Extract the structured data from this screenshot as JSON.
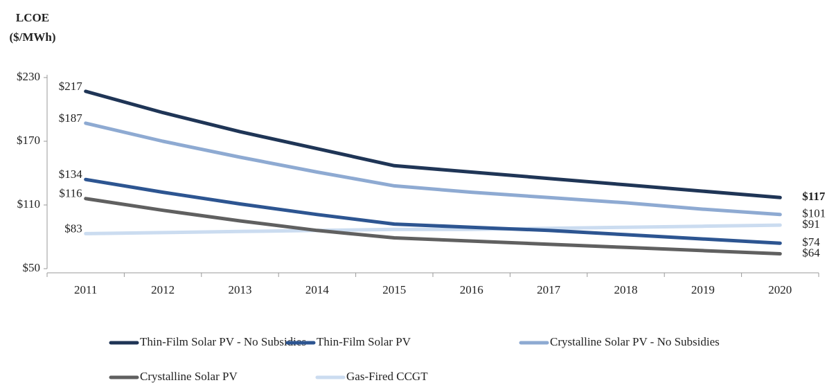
{
  "chart_data": {
    "type": "line",
    "y_label": "LCOE ($/MWh)",
    "categories": [
      "2011",
      "2012",
      "2013",
      "2014",
      "2015",
      "2016",
      "2017",
      "2018",
      "2019",
      "2020"
    ],
    "ylim": [
      50,
      230
    ],
    "yticks": [
      {
        "value": 50,
        "label": "$50"
      },
      {
        "value": 110,
        "label": "$110"
      },
      {
        "value": 170,
        "label": "$170"
      },
      {
        "value": 230,
        "label": "$230"
      }
    ],
    "series": [
      {
        "name": "Thin-Film Solar PV - No Subsidies",
        "color": "#1f3556",
        "values": [
          217,
          197,
          179,
          163,
          147,
          141,
          135,
          129,
          123,
          117
        ],
        "value_labels": [
          "$217",
          null,
          null,
          null,
          null,
          null,
          null,
          null,
          null,
          "$117"
        ]
      },
      {
        "name": "Thin-Film Solar PV",
        "color": "#2d5591",
        "values": [
          134,
          122,
          111,
          101,
          92,
          89,
          86,
          82,
          78,
          74
        ],
        "value_labels": [
          "$134",
          null,
          null,
          null,
          null,
          null,
          null,
          null,
          null,
          "$74"
        ]
      },
      {
        "name": "Crystalline Solar PV - No Subsidies",
        "color": "#8eaad2",
        "values": [
          187,
          170,
          155,
          141,
          128,
          122,
          117,
          112,
          106,
          101
        ],
        "value_labels": [
          "$187",
          null,
          null,
          null,
          null,
          null,
          null,
          null,
          null,
          "$101"
        ]
      },
      {
        "name": "Crystalline Solar PV",
        "color": "#606060",
        "values": [
          116,
          105,
          95,
          86,
          79,
          76,
          73,
          70,
          67,
          64
        ],
        "value_labels": [
          "$116",
          null,
          null,
          null,
          null,
          null,
          null,
          null,
          null,
          "$64"
        ]
      },
      {
        "name": "Gas-Fired CCGT",
        "color": "#cbdcf0",
        "values": [
          83,
          84,
          85,
          86,
          87,
          87,
          88,
          89,
          90,
          91
        ],
        "value_labels": [
          "$83",
          null,
          null,
          null,
          null,
          null,
          null,
          null,
          null,
          "$91"
        ]
      }
    ]
  }
}
